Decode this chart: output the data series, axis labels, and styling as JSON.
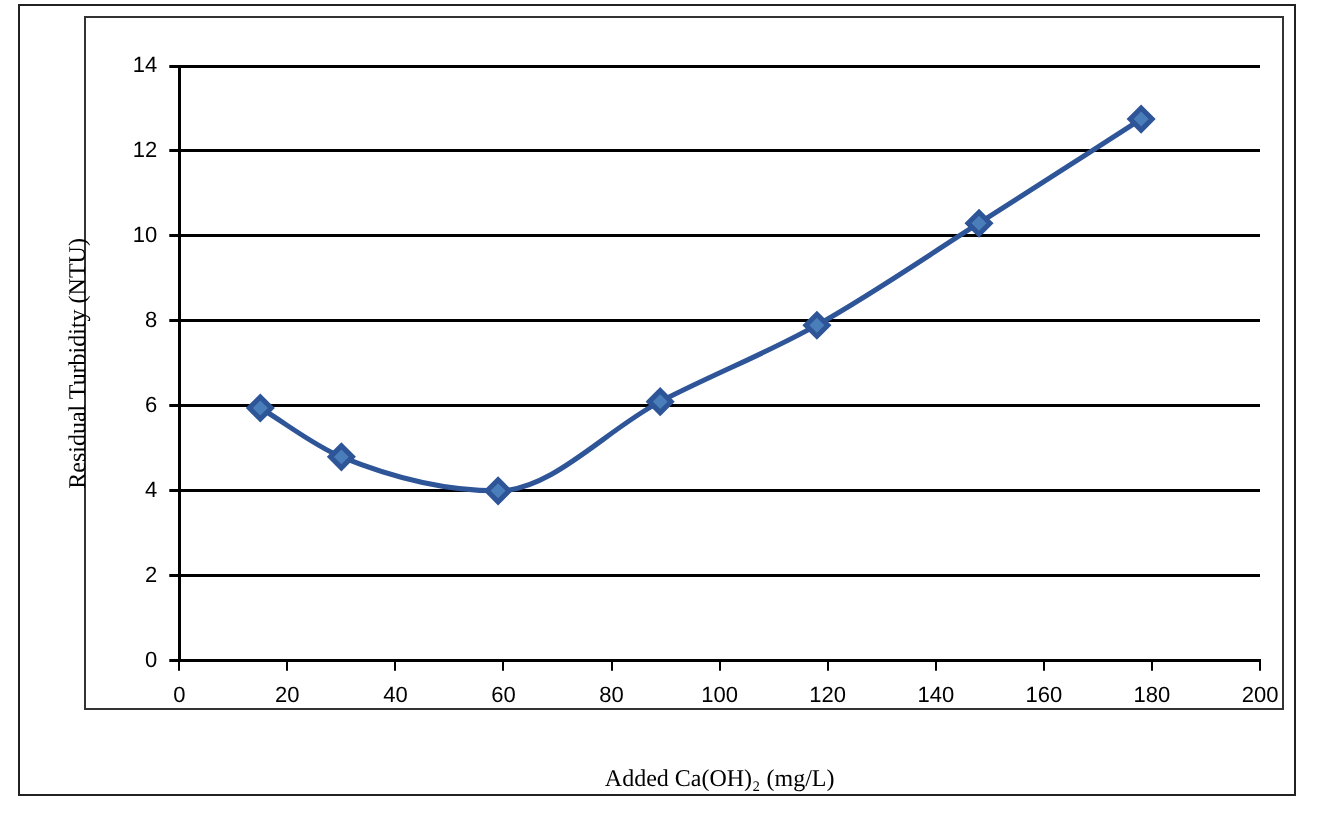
{
  "chart_data": {
    "type": "line",
    "xlabel": "Added Ca(OH)₂ (mg/L)",
    "ylabel": "Residual Turbidity (NTU)",
    "x": [
      15,
      30,
      59,
      89,
      118,
      148,
      178
    ],
    "series": [
      {
        "color": "#2e5597",
        "values": [
          5.95,
          4.8,
          4.0,
          6.1,
          7.9,
          10.3,
          12.75
        ]
      }
    ],
    "xlim": [
      0,
      200
    ],
    "xticks": [
      0,
      20,
      40,
      60,
      80,
      100,
      120,
      140,
      160,
      180,
      200
    ],
    "ylim": [
      0,
      14
    ],
    "yticks": [
      0,
      2,
      4,
      6,
      8,
      10,
      12,
      14
    ],
    "grid": "y",
    "legend": false,
    "marker": "diamond",
    "line_style": "solid"
  }
}
